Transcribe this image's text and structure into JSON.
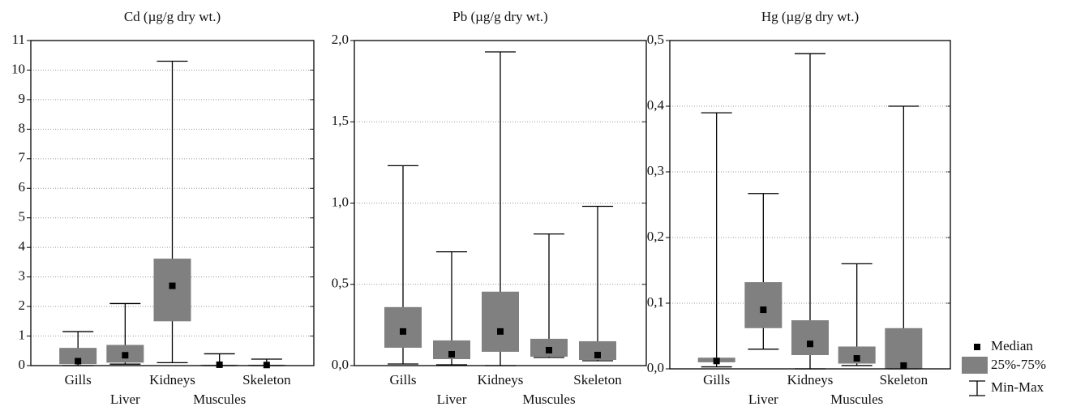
{
  "chart_data": [
    {
      "type": "box",
      "title": "Cd (µg/g dry wt.)",
      "categories": [
        "Gills",
        "Liver",
        "Kidneys",
        "Muscules",
        "Skeleton"
      ],
      "min": [
        0.0,
        0.05,
        0.1,
        0.0,
        0.0
      ],
      "q1": [
        0.05,
        0.1,
        1.5,
        0.0,
        0.0
      ],
      "median": [
        0.15,
        0.35,
        2.7,
        0.03,
        0.02
      ],
      "q3": [
        0.6,
        0.7,
        3.62,
        0.03,
        0.03
      ],
      "max": [
        1.15,
        2.1,
        10.3,
        0.4,
        0.22
      ],
      "color": "#808080",
      "ylim": [
        0,
        11
      ],
      "yticks": [
        0,
        1,
        2,
        3,
        4,
        5,
        6,
        7,
        8,
        9,
        10,
        11
      ],
      "grid": true
    },
    {
      "type": "box",
      "title": "Pb (µg/g dry wt.)",
      "categories": [
        "Gills",
        "Liver",
        "Kidneys",
        "Muscules",
        "Skeleton"
      ],
      "min": [
        0.01,
        0.005,
        0.0,
        0.05,
        0.03
      ],
      "q1": [
        0.11,
        0.04,
        0.085,
        0.055,
        0.035
      ],
      "median": [
        0.21,
        0.07,
        0.21,
        0.095,
        0.065
      ],
      "q3": [
        0.36,
        0.155,
        0.455,
        0.165,
        0.15
      ],
      "max": [
        1.23,
        0.7,
        1.93,
        0.81,
        0.98
      ],
      "color": "#808080",
      "ylim": [
        0,
        2
      ],
      "yticks": [
        {
          "value": 0,
          "label": "0,0"
        },
        {
          "value": 0.5,
          "label": "0,5"
        },
        {
          "value": 1,
          "label": "1,0"
        },
        {
          "value": 1.5,
          "label": "1,5"
        },
        {
          "value": 2,
          "label": "2,0"
        }
      ],
      "grid": true
    },
    {
      "type": "box",
      "title": "Hg (µg/g dry wt.)",
      "categories": [
        "Gills",
        "Liver",
        "Kidneys",
        "Muscules",
        "Skeleton"
      ],
      "min": [
        0.003,
        0.03,
        0.0,
        0.005,
        0.0
      ],
      "q1": [
        0.01,
        0.062,
        0.021,
        0.008,
        0.0
      ],
      "median": [
        0.012,
        0.09,
        0.038,
        0.016,
        0.005
      ],
      "q3": [
        0.017,
        0.132,
        0.074,
        0.034,
        0.062
      ],
      "max": [
        0.39,
        0.267,
        0.48,
        0.16,
        0.4
      ],
      "color": "#808080",
      "ylim": [
        0,
        0.5
      ],
      "yticks": [
        {
          "value": 0,
          "label": "0,0"
        },
        {
          "value": 0.1,
          "label": "0,1"
        },
        {
          "value": 0.2,
          "label": "0,2"
        },
        {
          "value": 0.3,
          "label": "0,3"
        },
        {
          "value": 0.4,
          "label": "0,4"
        },
        {
          "value": 0.5,
          "label": "0,5"
        }
      ],
      "grid": true
    }
  ],
  "legend": {
    "labels": [
      "Median",
      "25%-75%",
      "Min-Max"
    ],
    "position": "right"
  }
}
